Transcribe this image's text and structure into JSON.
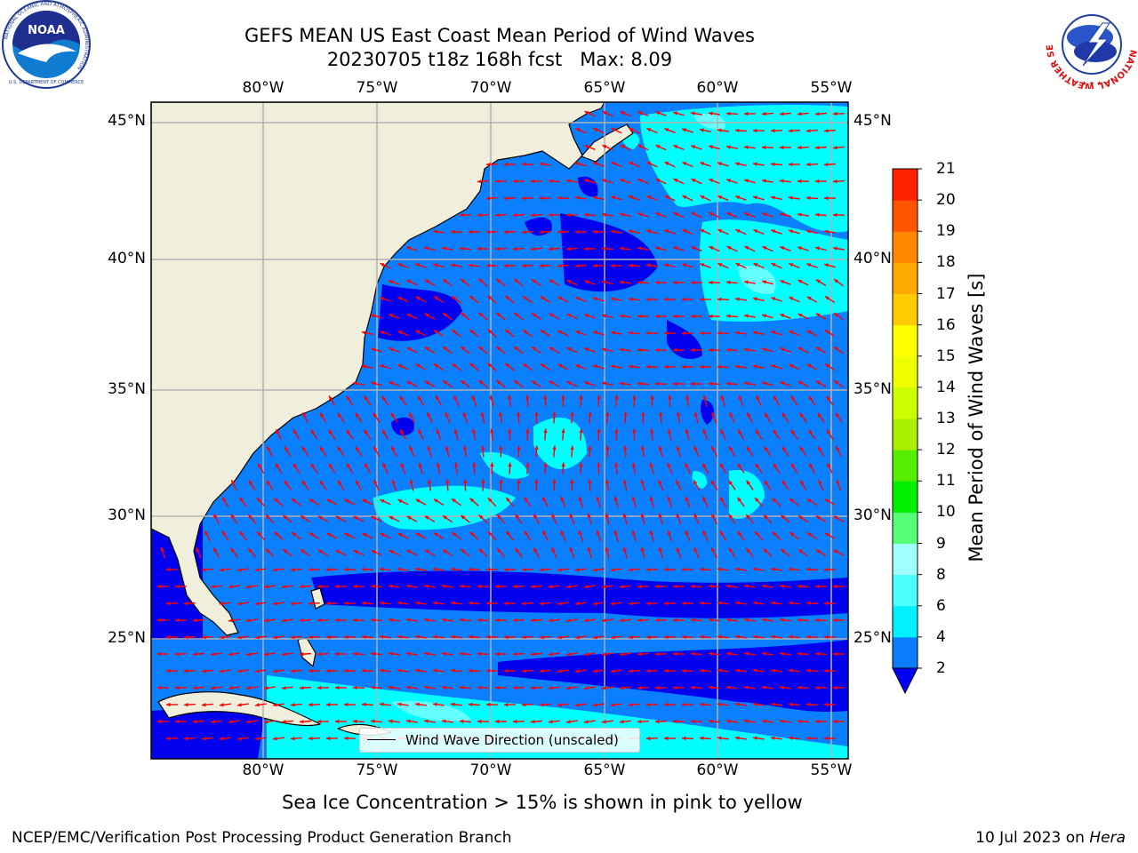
{
  "header": {
    "title_line1": "GEFS MEAN US East Coast Mean Period of Wind Waves",
    "title_line2": "20230705 t18z 168h fcst   Max: 8.09"
  },
  "logos": {
    "left": "noaa-logo",
    "right": "nws-logo",
    "left_ring_text": "NATIONAL OCEANIC AND ATMOSPHERIC ADMINISTRATION",
    "left_bottom_text": "U.S. DEPARTMENT OF COMMERCE",
    "left_center_text": "NOAA",
    "right_ring_text": "NATIONAL WEATHER SERVICE"
  },
  "map": {
    "lon_labels": [
      "80°W",
      "75°W",
      "70°W",
      "65°W",
      "60°W",
      "55°W"
    ],
    "lat_labels": [
      "45°N",
      "40°N",
      "35°N",
      "30°N",
      "25°N"
    ],
    "lon_range": [
      -85,
      -54
    ],
    "lat_range": [
      20.5,
      46
    ],
    "legend_label": "Wind Wave Direction (unscaled)",
    "colors": {
      "land": "#efefdb",
      "ocean_2_4": "#0a80ff",
      "ocean_lt2": "#0000ee",
      "ocean_4_6": "#00ffff",
      "ocean_6_8": "#66ffff",
      "arrows": "#ff0000",
      "grid": "#b3b3b3"
    }
  },
  "colorbar": {
    "label": "Mean Period of Wind Waves [s]",
    "ticks": [
      "2",
      "4",
      "6",
      "8",
      "9",
      "10",
      "11",
      "12",
      "13",
      "14",
      "15",
      "16",
      "17",
      "18",
      "19",
      "20",
      "21"
    ],
    "colors": [
      "#0a7dff",
      "#00f0ff",
      "#4cffff",
      "#a0ffff",
      "#55ff77",
      "#00ee00",
      "#55ee00",
      "#aaee00",
      "#ccff00",
      "#eeff00",
      "#ffff00",
      "#ffcc00",
      "#ffaa00",
      "#ff8800",
      "#ff5500",
      "#ff2200"
    ],
    "extend_color": "#0000ff"
  },
  "footnote": "Sea Ice Concentration > 15% is shown in pink to yellow",
  "footer": {
    "left": "NCEP/EMC/Verification Post Processing Product Generation Branch",
    "right_prefix": "10 Jul 2023 on ",
    "right_host": "Hera"
  }
}
